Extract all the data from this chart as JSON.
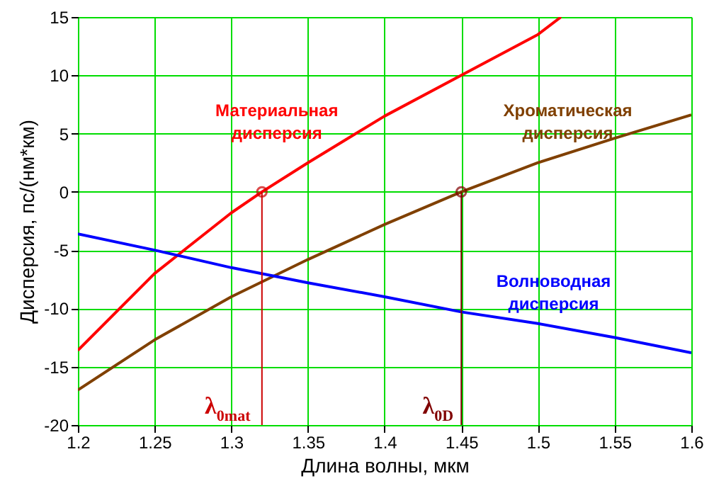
{
  "chart_data": {
    "type": "line",
    "xlabel": "Длина волны, мкм",
    "ylabel": "Дисперсия, пс/(нм*км)",
    "xlim": [
      1.2,
      1.6
    ],
    "xticks": [
      1.2,
      1.25,
      1.3,
      1.35,
      1.4,
      1.45,
      1.5,
      1.55,
      1.6
    ],
    "ylim": [
      -20,
      15
    ],
    "yticks": [
      -20,
      -15,
      -10,
      -5,
      0,
      5,
      10,
      15
    ],
    "grid": true,
    "marker": "none",
    "line_style": "solid",
    "series": [
      {
        "name": "Материальная дисперсия",
        "color": "#ff0000",
        "x": [
          1.2,
          1.25,
          1.3,
          1.32,
          1.35,
          1.4,
          1.45,
          1.5,
          1.515
        ],
        "values": [
          -13.6,
          -7,
          -1.8,
          0,
          2.5,
          6.5,
          10,
          13.5,
          15
        ]
      },
      {
        "name": "Хроматическая дисперсия",
        "color": "#804000",
        "x": [
          1.2,
          1.25,
          1.3,
          1.35,
          1.4,
          1.45,
          1.5,
          1.55,
          1.6
        ],
        "values": [
          -17,
          -12.7,
          -9,
          -5.8,
          -2.8,
          0,
          2.5,
          4.6,
          6.6
        ]
      },
      {
        "name": "Волноводная дисперсия",
        "color": "#0000ff",
        "x": [
          1.2,
          1.25,
          1.3,
          1.35,
          1.4,
          1.45,
          1.5,
          1.55,
          1.6
        ],
        "values": [
          -3.6,
          -5,
          -6.5,
          -7.8,
          -9,
          -10.3,
          -11.3,
          -12.5,
          -13.8
        ]
      }
    ],
    "ref_lines": [
      {
        "axis": "x",
        "value": 1.32,
        "label": "λ$_{0mat}$",
        "color": "#cc0000"
      },
      {
        "axis": "x",
        "value": 1.45,
        "label": "λ$_{0D}$",
        "color": "#800000"
      }
    ]
  }
}
